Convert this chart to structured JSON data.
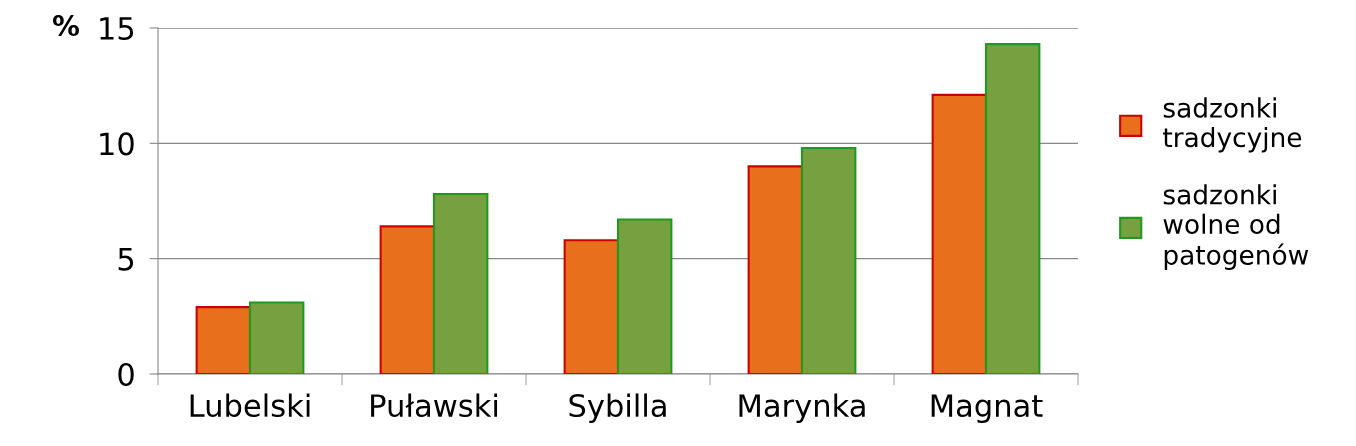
{
  "chart_data": {
    "type": "bar",
    "ylabel": "%",
    "categories": [
      "Lubelski",
      "Puławski",
      "Sybilla",
      "Marynka",
      "Magnat"
    ],
    "series": [
      {
        "name": "sadzonki\ntradycyjne",
        "color": "#e8701c",
        "values": [
          2.9,
          6.4,
          5.8,
          9.0,
          12.1
        ]
      },
      {
        "name": "sadzonki\nwolne od\npatogenów",
        "color": "#77a040",
        "values": [
          3.1,
          7.8,
          6.7,
          9.8,
          14.3
        ]
      }
    ],
    "ylim": [
      0,
      15
    ],
    "yticks": [
      0,
      5,
      10,
      15
    ],
    "grid": "y",
    "legend": "right"
  }
}
